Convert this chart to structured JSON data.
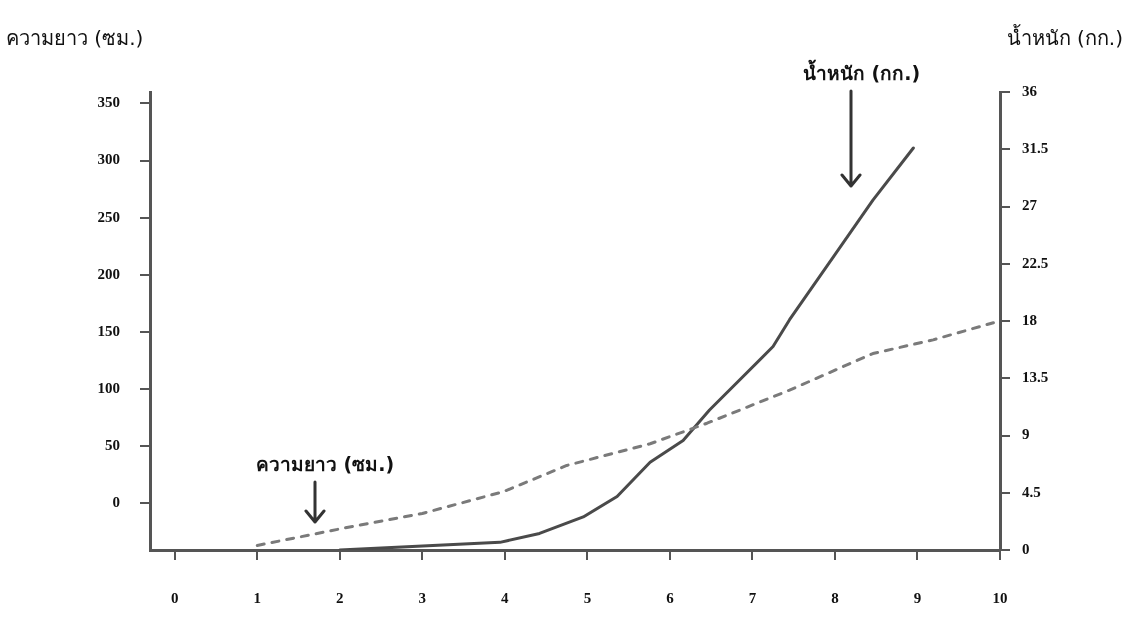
{
  "chart_data": {
    "type": "line",
    "ylabel": "ความยาว (ซม.)",
    "y2label": "น้ำหนัก (กก.)",
    "xlim": [
      -0.3,
      10
    ],
    "xticks": [
      0,
      1,
      2,
      3,
      4,
      5,
      6,
      7,
      8,
      9,
      10
    ],
    "ylim": [
      -41,
      360
    ],
    "yticks": [
      0,
      50,
      100,
      150,
      200,
      250,
      300,
      350
    ],
    "y2lim": [
      0,
      36
    ],
    "y2ticks": [
      0,
      4.5,
      9,
      13.5,
      18,
      22.5,
      27,
      31.5,
      36
    ],
    "grid": false,
    "marker": "none",
    "series": [
      {
        "name": "ความยาว (ซม.)",
        "color": "#7a7a7a",
        "line_style": "dashed",
        "axis": "y",
        "x": [
          1,
          2.04,
          3,
          3.98,
          4.75,
          5.76,
          6.45,
          7.45,
          8.46,
          9.19,
          9.92
        ],
        "values": [
          -37,
          -22,
          -9,
          10,
          33,
          52,
          70,
          99,
          131,
          143,
          158
        ]
      },
      {
        "name": "น้ำหนัก (กก.)",
        "color": "#4a4a4a",
        "line_style": "solid",
        "axis": "y2",
        "x": [
          2,
          3.94,
          4.42,
          4.95,
          5.36,
          5.76,
          6.16,
          6.48,
          7.25,
          7.45,
          8.46,
          8.95
        ],
        "values": [
          0,
          0.6,
          1.3,
          2.6,
          4.2,
          6.9,
          8.6,
          11,
          16,
          18.1,
          27.5,
          31.6
        ]
      }
    ]
  }
}
